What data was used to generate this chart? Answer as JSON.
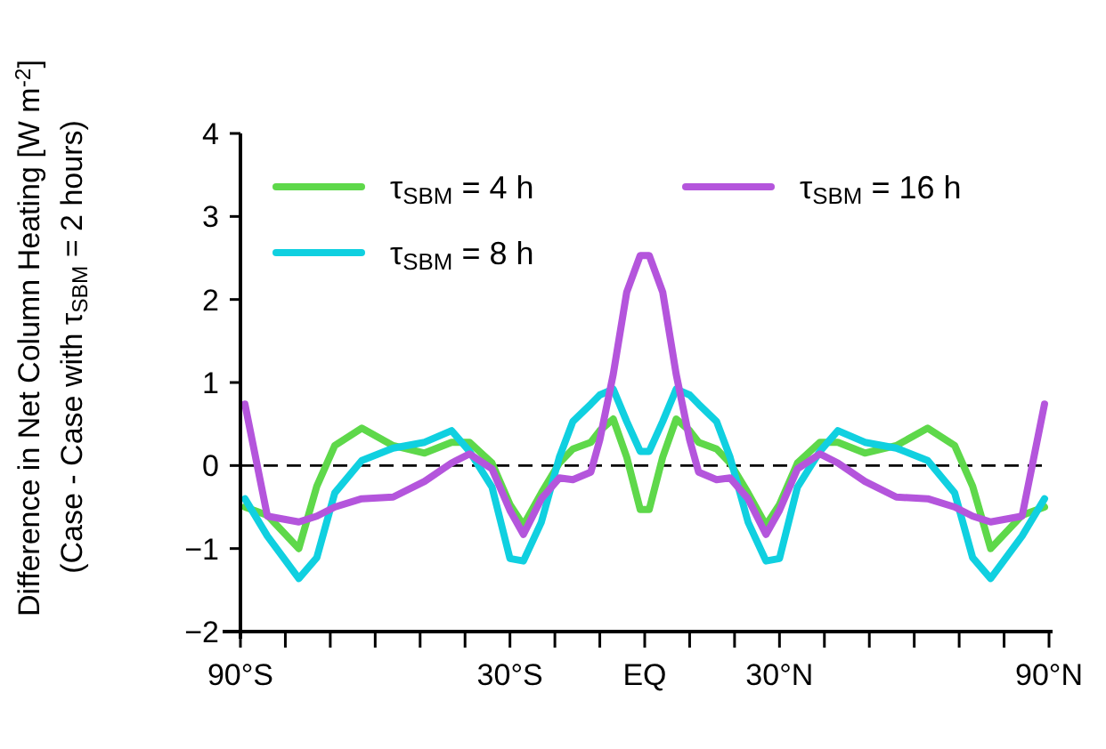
{
  "chart_data": {
    "type": "line",
    "ylabel": "Difference in Net Column Heating [W m$^{-2}$]\n(Case - Case with τ$_{SBM}$ = 2 hours)",
    "x": [
      -89,
      -84,
      -77,
      -73,
      -69,
      -63,
      -56,
      -49,
      -43,
      -39,
      -34,
      -30,
      -27,
      -23,
      -19,
      -16,
      -12,
      -10,
      -7,
      -4,
      -1,
      1,
      4,
      7,
      10,
      12,
      16,
      19,
      23,
      27,
      30,
      34,
      39,
      43,
      49,
      56,
      63,
      69,
      73,
      77,
      84,
      89
    ],
    "series": [
      {
        "name": "τ$_{SBM}$ = 4 h",
        "color": "#5ed84a",
        "values": [
          -0.5,
          -0.6,
          -1.0,
          -0.25,
          0.24,
          0.45,
          0.24,
          0.15,
          0.28,
          0.28,
          0.03,
          -0.47,
          -0.72,
          -0.33,
          0.03,
          0.2,
          0.28,
          0.42,
          0.56,
          0.1,
          -0.53,
          -0.53,
          0.1,
          0.56,
          0.42,
          0.28,
          0.2,
          0.03,
          -0.33,
          -0.72,
          -0.47,
          0.03,
          0.28,
          0.28,
          0.15,
          0.24,
          0.45,
          0.24,
          -0.25,
          -1.0,
          -0.6,
          -0.5
        ]
      },
      {
        "name": "τ$_{SBM}$ = 8 h",
        "color": "#10d0e0",
        "values": [
          -0.4,
          -0.85,
          -1.36,
          -1.11,
          -0.33,
          0.06,
          0.21,
          0.28,
          0.42,
          0.17,
          -0.26,
          -1.12,
          -1.15,
          -0.68,
          0.1,
          0.53,
          0.74,
          0.85,
          0.92,
          0.53,
          0.17,
          0.17,
          0.53,
          0.92,
          0.85,
          0.74,
          0.53,
          0.1,
          -0.68,
          -1.15,
          -1.12,
          -0.26,
          0.17,
          0.42,
          0.28,
          0.21,
          0.06,
          -0.33,
          -1.11,
          -1.36,
          -0.85,
          -0.4
        ]
      },
      {
        "name": "τ$_{SBM}$ = 16 h",
        "color": "#b455dc",
        "values": [
          0.74,
          -0.61,
          -0.68,
          -0.61,
          -0.5,
          -0.4,
          -0.38,
          -0.19,
          0.03,
          0.14,
          -0.04,
          -0.54,
          -0.83,
          -0.4,
          -0.15,
          -0.17,
          -0.08,
          0.31,
          1.1,
          2.09,
          2.53,
          2.53,
          2.09,
          1.1,
          0.31,
          -0.08,
          -0.17,
          -0.15,
          -0.4,
          -0.83,
          -0.54,
          -0.04,
          0.14,
          0.03,
          -0.19,
          -0.38,
          -0.4,
          -0.5,
          -0.61,
          -0.68,
          -0.61,
          0.74
        ]
      }
    ],
    "xlim": [
      -90,
      90
    ],
    "xticks": [
      {
        "value": -90,
        "label": "90°S"
      },
      {
        "value": -80,
        "label": null
      },
      {
        "value": -70,
        "label": null
      },
      {
        "value": -60,
        "label": null
      },
      {
        "value": -50,
        "label": null
      },
      {
        "value": -40,
        "label": null
      },
      {
        "value": -30,
        "label": "30°S"
      },
      {
        "value": -20,
        "label": null
      },
      {
        "value": -10,
        "label": null
      },
      {
        "value": 0,
        "label": "EQ"
      },
      {
        "value": 10,
        "label": null
      },
      {
        "value": 20,
        "label": null
      },
      {
        "value": 30,
        "label": "30°N"
      },
      {
        "value": 40,
        "label": null
      },
      {
        "value": 50,
        "label": null
      },
      {
        "value": 60,
        "label": null
      },
      {
        "value": 70,
        "label": null
      },
      {
        "value": 80,
        "label": null
      },
      {
        "value": 90,
        "label": "90°N"
      }
    ],
    "ylim": [
      -2,
      4
    ],
    "yticks": [
      -2,
      -1,
      0,
      1,
      2,
      3,
      4
    ],
    "ref_lines": [
      {
        "axis": "y",
        "value": 0,
        "color": "#000000",
        "line_style": "dashed"
      }
    ],
    "legend": "top",
    "grid": false,
    "marker": "none",
    "line_style": "solid"
  }
}
